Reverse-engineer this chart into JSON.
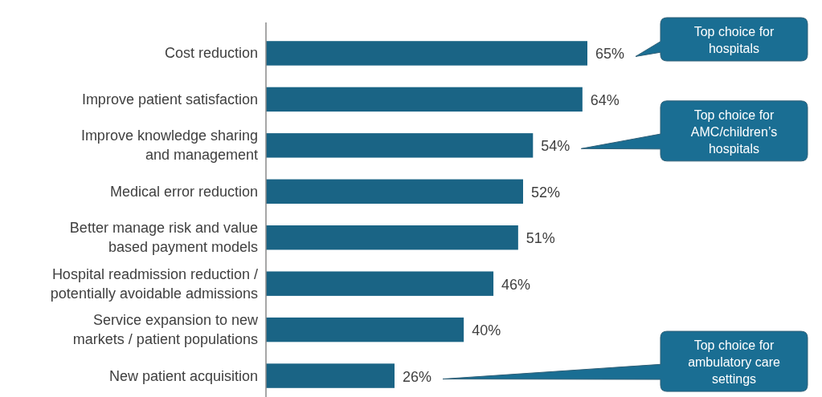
{
  "chart_data": {
    "type": "bar",
    "orientation": "horizontal",
    "data_labels": true,
    "categories": [
      "Cost reduction",
      "Improve patient satisfaction",
      "Improve knowledge sharing\nand management",
      "Medical error reduction",
      "Better manage risk and value\nbased payment models",
      "Hospital readmission reduction /\npotentially avoidable admissions",
      "Service expansion to new\nmarkets / patient populations",
      "New patient acquisition"
    ],
    "values": [
      65,
      64,
      54,
      52,
      51,
      46,
      40,
      26
    ],
    "value_labels": [
      "65%",
      "64%",
      "54%",
      "52%",
      "51%",
      "46%",
      "40%",
      "26%"
    ],
    "color": "#1a6485",
    "annotations": [
      "Top choice for hospitals",
      "Top choice for AMC/children’s hospitals",
      "Top choice for ambulatory care settings"
    ]
  }
}
